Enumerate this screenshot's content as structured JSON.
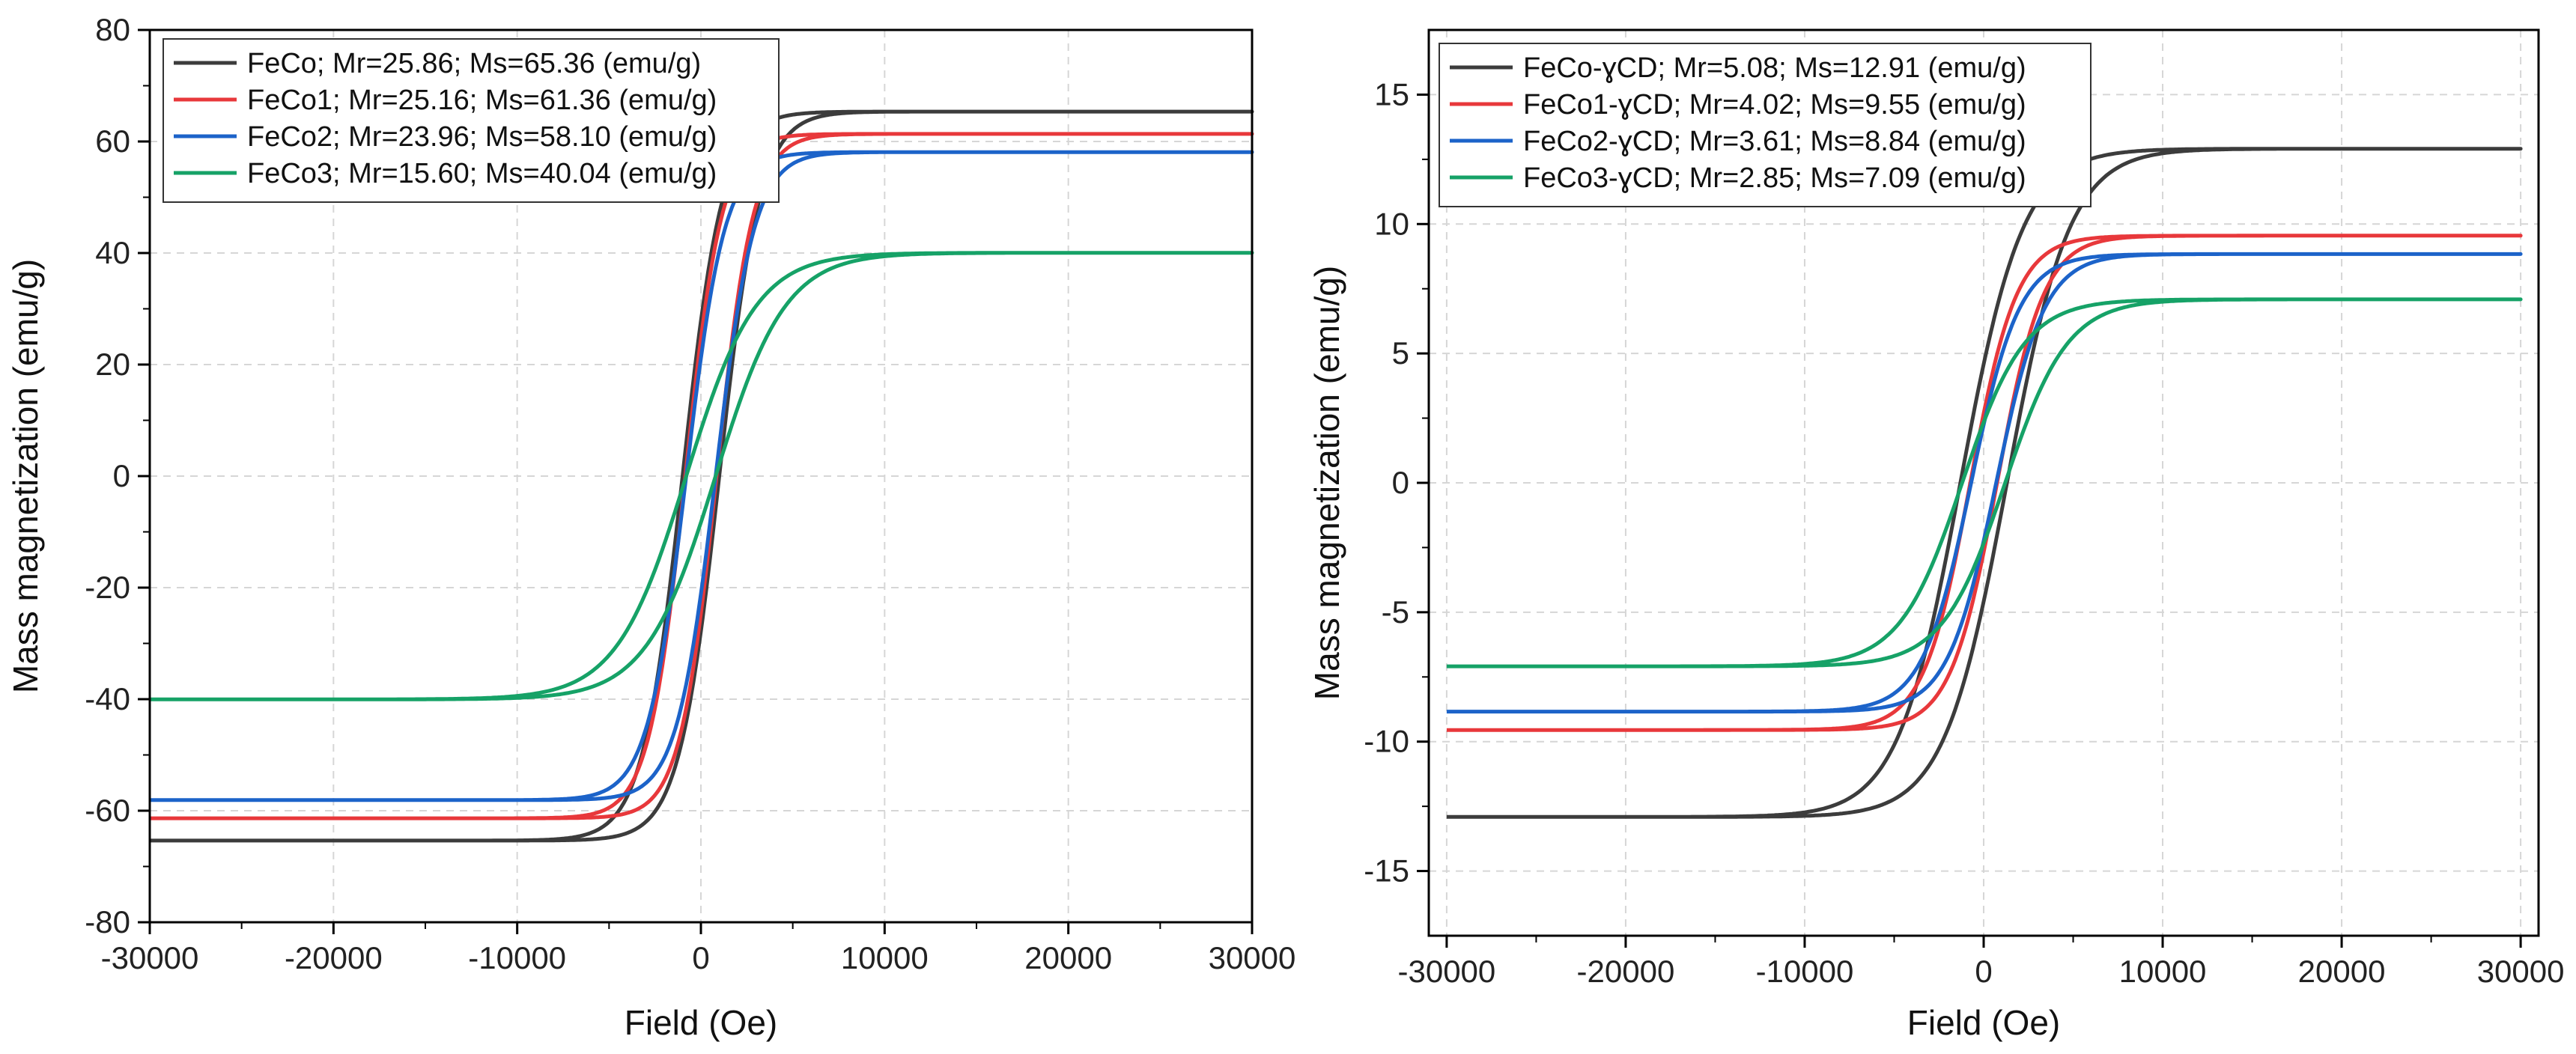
{
  "chart_data": [
    {
      "type": "line",
      "xlabel": "Field (Oe)",
      "ylabel": "Mass magnetization (emu/g)",
      "xlim": [
        -30000,
        30000
      ],
      "ylim": [
        -80,
        80
      ],
      "xticks": [
        -30000,
        -20000,
        -10000,
        0,
        10000,
        20000,
        30000
      ],
      "xtick_labels": [
        "-30000",
        "-20000",
        "-10000",
        "0",
        "10000",
        "20000",
        "30000"
      ],
      "yticks": [
        -80,
        -60,
        -40,
        -20,
        0,
        20,
        40,
        60,
        80
      ],
      "ytick_labels": [
        "-80",
        "-60",
        "-40",
        "-20",
        "0",
        "20",
        "40",
        "60",
        "80"
      ],
      "grid": true,
      "legend_position": "top-left",
      "series": [
        {
          "name": "FeCo; Mr=25.86; Ms=65.36 (emu/g)",
          "color": "#3c3c3c",
          "Ms": 65.36,
          "Mr": 25.86,
          "Hc": 1000,
          "Hk": 2200
        },
        {
          "name": "FeCo1;  Mr=25.16; Ms=61.36 (emu/g)",
          "color": "#e8383b",
          "Ms": 61.36,
          "Mr": 25.16,
          "Hc": 850,
          "Hk": 2000
        },
        {
          "name": "FeCo2;  Mr=23.96; Ms=58.10 (emu/g)",
          "color": "#1c63c9",
          "Ms": 58.1,
          "Mr": 23.96,
          "Hc": 800,
          "Hk": 2100
        },
        {
          "name": "FeCo3;  Mr=15.60; Ms=40.04 (emu/g)",
          "color": "#16a267",
          "Ms": 40.04,
          "Mr": 15.6,
          "Hc": 800,
          "Hk": 3800
        }
      ]
    },
    {
      "type": "line",
      "xlabel": "Field (Oe)",
      "ylabel": "Mass magnetization (emu/g)",
      "xlim": [
        -31000,
        31000
      ],
      "ylim": [
        -17.5,
        17.5
      ],
      "xticks": [
        -30000,
        -20000,
        -10000,
        0,
        10000,
        20000,
        30000
      ],
      "xtick_labels": [
        "-30000",
        "-20000",
        "-10000",
        "0",
        "10000",
        "20000",
        "30000"
      ],
      "yticks": [
        -15,
        -10,
        -5,
        0,
        5,
        10,
        15
      ],
      "ytick_labels": [
        "-15",
        "-10",
        "-5",
        "0",
        "5",
        "10",
        "15"
      ],
      "grid": true,
      "legend_position": "top-left",
      "series": [
        {
          "name": "FeCo-ɣCD; Mr=5.08; Ms=12.91 (emu/g)",
          "color": "#3c3c3c",
          "Ms": 12.91,
          "Mr": 5.08,
          "Hc": 1300,
          "Hk": 3500
        },
        {
          "name": "FeCo1-ɣCD; Mr=4.02; Ms=9.55 (emu/g)",
          "color": "#e8383b",
          "Ms": 9.55,
          "Mr": 4.02,
          "Hc": 750,
          "Hk": 2600
        },
        {
          "name": "FeCo2-ɣCD; Mr=3.61; Ms=8.84 (emu/g)",
          "color": "#1c63c9",
          "Ms": 8.84,
          "Mr": 3.61,
          "Hc": 700,
          "Hk": 2700
        },
        {
          "name": "FeCo3-ɣCD; Mr=2.85; Ms=7.09 (emu/g)",
          "color": "#16a267",
          "Ms": 7.09,
          "Mr": 2.85,
          "Hc": 1200,
          "Hk": 3500
        }
      ]
    }
  ]
}
